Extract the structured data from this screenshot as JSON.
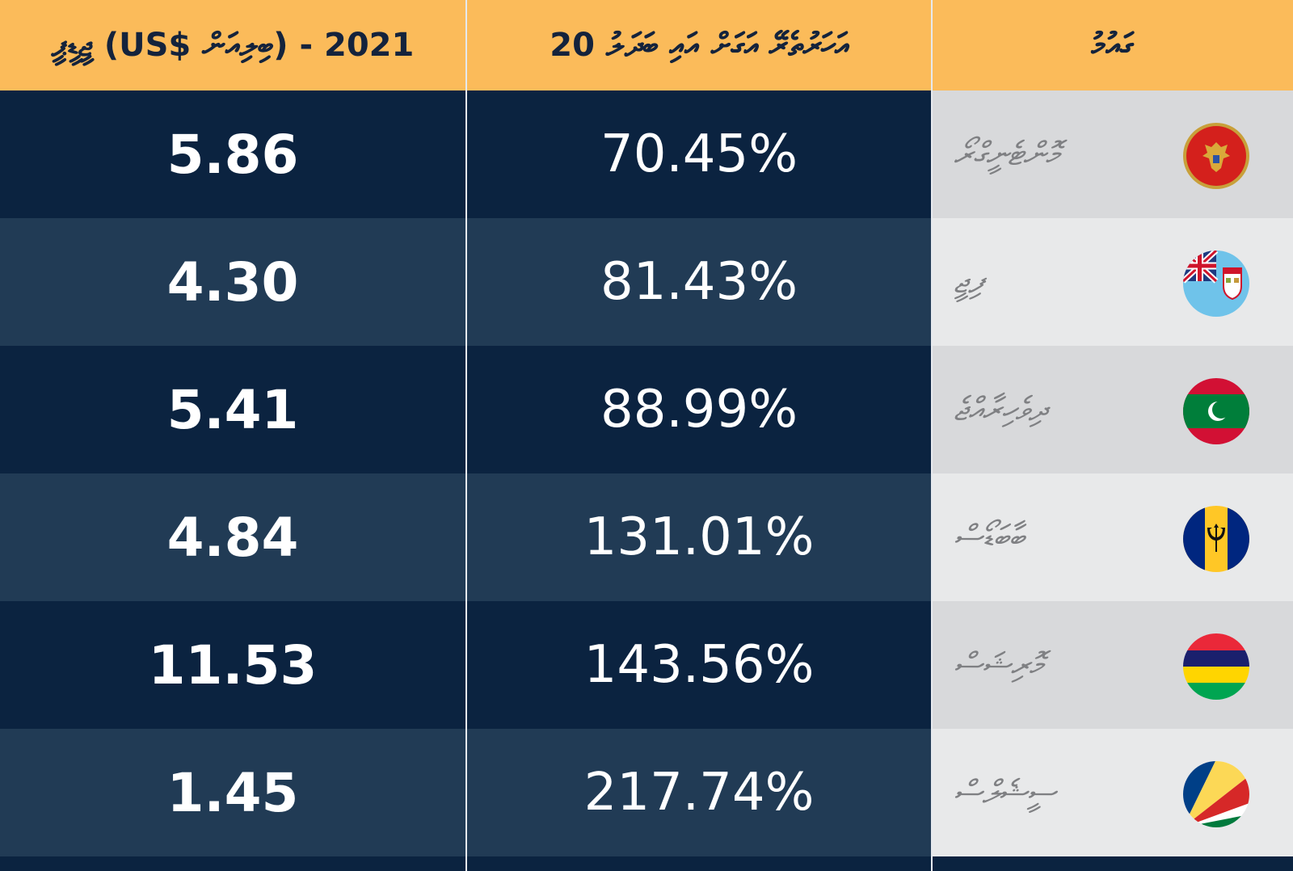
{
  "chart_data": {
    "type": "table",
    "columns": [
      "ޖީޑީޕީ (US$ ބިލިއަން) - 2021",
      "20 އަހަރުތެރޭ އަގަށް އައި ބަދަލު",
      "ގައުމު"
    ],
    "rows": [
      {
        "country": "މޮންޓެނީގްރޯ",
        "flag": "montenegro-flag",
        "gdp": "5.86",
        "change": "70.45%"
      },
      {
        "country": "ފިޖީ",
        "flag": "fiji-flag",
        "gdp": "4.30",
        "change": "81.43%"
      },
      {
        "country": "ދިވެހިރާއްޖެ",
        "flag": "maldives-flag",
        "gdp": "5.41",
        "change": "88.99%"
      },
      {
        "country": "ބާބަޑޯސް",
        "flag": "barbados-flag",
        "gdp": "4.84",
        "change": "131.01%"
      },
      {
        "country": "މޮރިޝަސް",
        "flag": "mauritius-flag",
        "gdp": "11.53",
        "change": "143.56%"
      },
      {
        "country": "ސީޝެލްސް",
        "flag": "seychelles-flag",
        "gdp": "1.45",
        "change": "217.74%"
      }
    ]
  },
  "colors": {
    "header": "#fbbb5a",
    "row_dark": "#0b2340",
    "row_light": "#213b55",
    "country_dark": "#d8d9db",
    "country_light": "#e8e9ea"
  }
}
